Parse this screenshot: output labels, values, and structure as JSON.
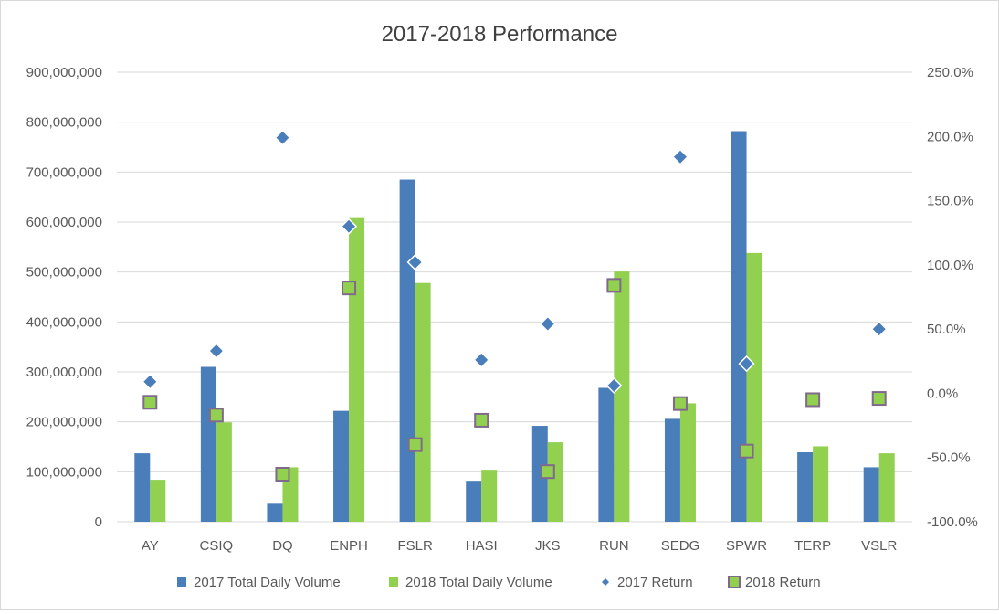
{
  "chart_data": {
    "type": "bar",
    "title": "2017-2018 Performance",
    "categories": [
      "AY",
      "CSIQ",
      "DQ",
      "ENPH",
      "FSLR",
      "HASI",
      "JKS",
      "RUN",
      "SEDG",
      "SPWR",
      "TERP",
      "VSLR"
    ],
    "series": [
      {
        "name": "2017 Total Daily Volume",
        "type": "bar",
        "axis": "left",
        "color": "#4a7ebb",
        "values": [
          137000000,
          310000000,
          36000000,
          222000000,
          685000000,
          82000000,
          192000000,
          268000000,
          206000000,
          782000000,
          139000000,
          109000000
        ]
      },
      {
        "name": "2018 Total Daily Volume",
        "type": "bar",
        "axis": "left",
        "color": "#92d050",
        "values": [
          84000000,
          199000000,
          109000000,
          608000000,
          478000000,
          104000000,
          159000000,
          501000000,
          237000000,
          538000000,
          151000000,
          137000000
        ]
      },
      {
        "name": "2017 Return",
        "type": "scatter",
        "marker": "diamond",
        "axis": "right",
        "color": "#4a7ebb",
        "values": [
          9,
          33,
          199,
          130,
          102,
          26,
          54,
          6,
          184,
          23,
          -5,
          50
        ]
      },
      {
        "name": "2018 Return",
        "type": "scatter",
        "marker": "square",
        "axis": "right",
        "color": "#92d050",
        "edge_color": "#7f6a8c",
        "values": [
          -7,
          -17,
          -63,
          82,
          -40,
          -21,
          -61,
          84,
          -8,
          -45,
          -5,
          -4
        ]
      }
    ],
    "y_left": {
      "min": 0,
      "max": 900000000,
      "step": 100000000,
      "tick_labels": [
        "0",
        "100,000,000",
        "200,000,000",
        "300,000,000",
        "400,000,000",
        "500,000,000",
        "600,000,000",
        "700,000,000",
        "800,000,000",
        "900,000,000"
      ]
    },
    "y_right": {
      "min": -100,
      "max": 250,
      "step": 50,
      "tick_labels": [
        "-100.0%",
        "-50.0%",
        "0.0%",
        "50.0%",
        "100.0%",
        "150.0%",
        "200.0%",
        "250.0%"
      ]
    },
    "grid": true,
    "legend_position": "bottom",
    "gridline_color": "#d9d9d9"
  }
}
